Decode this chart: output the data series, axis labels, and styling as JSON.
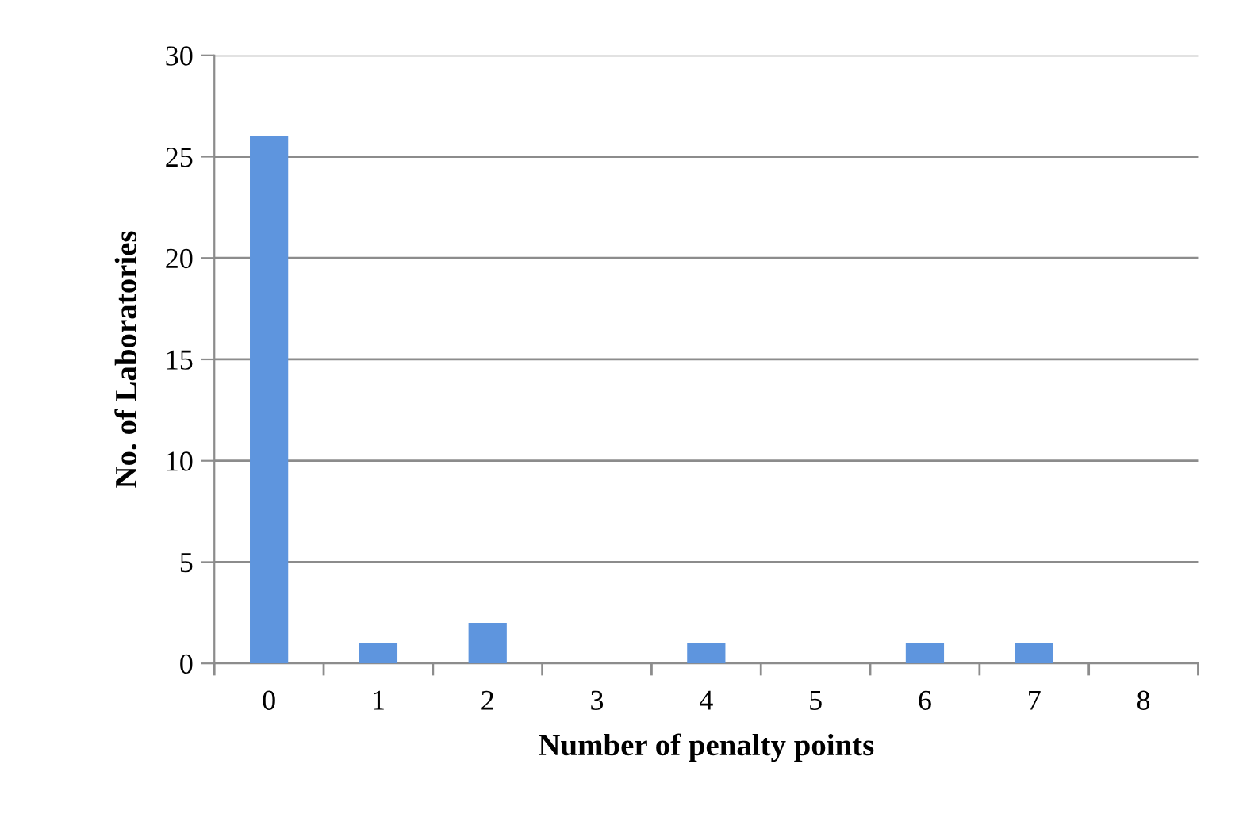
{
  "chart_data": {
    "type": "bar",
    "xlabel": "Number of penalty points",
    "ylabel": "No. of Laboratories",
    "categories": [
      "0",
      "1",
      "2",
      "3",
      "4",
      "5",
      "6",
      "7",
      "8"
    ],
    "values": [
      26,
      1,
      2,
      0,
      1,
      0,
      1,
      1,
      0
    ],
    "color": "#5e95de",
    "ylim": [
      0,
      30
    ],
    "yticks": [
      0,
      5,
      10,
      15,
      20,
      25,
      30
    ],
    "grid": "y",
    "legend": false
  }
}
